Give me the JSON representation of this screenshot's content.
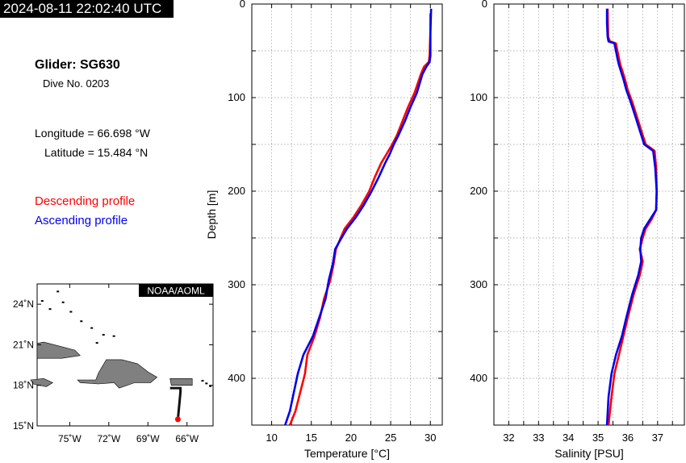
{
  "header": {
    "timestamp": "2024-08-11 22:02:40 UTC",
    "glider_label": "Glider: SG630",
    "dive_label": "Dive No. 0203",
    "longitude_label": "Longitude = 66.698 °W",
    "latitude_label": "Latitude = 15.484 °N"
  },
  "legend": {
    "descending": "Descending profile",
    "ascending": "Ascending profile"
  },
  "colors": {
    "descending": "#ff0000",
    "ascending": "#0000ee",
    "land": "#808080",
    "track": "#111111"
  },
  "map": {
    "label": "NOAA/AOML",
    "lat_ticks": [
      {
        "v": 24,
        "label": "24˚N"
      },
      {
        "v": 21,
        "label": "21˚N"
      },
      {
        "v": 18,
        "label": "18˚N"
      },
      {
        "v": 15,
        "label": "15˚N"
      }
    ],
    "lon_ticks": [
      {
        "v": -75,
        "label": "75˚W"
      },
      {
        "v": -72,
        "label": "72˚W"
      },
      {
        "v": -69,
        "label": "69˚W"
      },
      {
        "v": -66,
        "label": "66˚W"
      }
    ],
    "lon_range": [
      -77.5,
      -64.0
    ],
    "lat_range": [
      15.0,
      25.5
    ],
    "glider_position": [
      -66.698,
      15.484
    ]
  },
  "chart_data": [
    {
      "type": "line",
      "xlabel": "Temperature [°C]",
      "ylabel": "Depth [m]",
      "xlim": [
        7.5,
        31.5
      ],
      "ylim": [
        450,
        0
      ],
      "x_ticks": [
        10,
        15,
        20,
        25,
        30
      ],
      "y_ticks": [
        0,
        100,
        200,
        300,
        400
      ],
      "grid": true,
      "series": [
        {
          "name": "Descending profile",
          "color": "#ff0000",
          "points": [
            [
              30.0,
              10
            ],
            [
              30.0,
              30
            ],
            [
              29.9,
              55
            ],
            [
              29.8,
              62
            ],
            [
              29.2,
              67
            ],
            [
              28.8,
              75
            ],
            [
              28.0,
              95
            ],
            [
              27.2,
              110
            ],
            [
              26.5,
              125
            ],
            [
              25.8,
              140
            ],
            [
              25.2,
              150
            ],
            [
              24.5,
              160
            ],
            [
              23.8,
              170
            ],
            [
              23.0,
              185
            ],
            [
              22.3,
              200
            ],
            [
              21.3,
              215
            ],
            [
              20.3,
              228
            ],
            [
              19.2,
              240
            ],
            [
              18.7,
              250
            ],
            [
              18.1,
              262
            ],
            [
              17.8,
              278
            ],
            [
              17.4,
              295
            ],
            [
              16.6,
              315
            ],
            [
              16.1,
              335
            ],
            [
              15.4,
              355
            ],
            [
              14.5,
              375
            ],
            [
              14.2,
              395
            ],
            [
              13.6,
              415
            ],
            [
              13.0,
              435
            ],
            [
              12.3,
              450
            ]
          ]
        },
        {
          "name": "Ascending profile",
          "color": "#0000ee",
          "points": [
            [
              30.1,
              5
            ],
            [
              30.0,
              30
            ],
            [
              30.0,
              55
            ],
            [
              29.9,
              62
            ],
            [
              29.5,
              67
            ],
            [
              29.0,
              75
            ],
            [
              28.3,
              95
            ],
            [
              27.5,
              110
            ],
            [
              26.8,
              125
            ],
            [
              26.0,
              140
            ],
            [
              25.4,
              150
            ],
            [
              24.9,
              160
            ],
            [
              24.3,
              170
            ],
            [
              23.5,
              185
            ],
            [
              22.6,
              200
            ],
            [
              21.6,
              215
            ],
            [
              20.6,
              228
            ],
            [
              19.5,
              240
            ],
            [
              18.8,
              250
            ],
            [
              18.0,
              262
            ],
            [
              17.7,
              278
            ],
            [
              17.2,
              295
            ],
            [
              16.8,
              315
            ],
            [
              16.0,
              335
            ],
            [
              15.2,
              355
            ],
            [
              14.0,
              375
            ],
            [
              13.3,
              395
            ],
            [
              12.8,
              415
            ],
            [
              12.3,
              435
            ],
            [
              11.7,
              450
            ]
          ]
        }
      ]
    },
    {
      "type": "line",
      "xlabel": "Salinity [PSU]",
      "ylabel": "",
      "xlim": [
        31.5,
        37.9
      ],
      "ylim": [
        450,
        0
      ],
      "x_ticks": [
        32,
        33,
        34,
        35,
        36,
        37
      ],
      "y_ticks": [
        0,
        100,
        200,
        300,
        400
      ],
      "grid": true,
      "series": [
        {
          "name": "Descending profile",
          "color": "#ff0000",
          "points": [
            [
              35.32,
              5
            ],
            [
              35.33,
              20
            ],
            [
              35.34,
              35
            ],
            [
              35.4,
              40
            ],
            [
              35.6,
              42
            ],
            [
              35.65,
              50
            ],
            [
              35.7,
              58
            ],
            [
              35.75,
              65
            ],
            [
              35.8,
              70
            ],
            [
              35.9,
              80
            ],
            [
              36.0,
              92
            ],
            [
              36.15,
              105
            ],
            [
              36.3,
              120
            ],
            [
              36.45,
              135
            ],
            [
              36.6,
              150
            ],
            [
              36.9,
              157
            ],
            [
              36.95,
              175
            ],
            [
              36.97,
              200
            ],
            [
              36.95,
              220
            ],
            [
              36.8,
              230
            ],
            [
              36.6,
              240
            ],
            [
              36.5,
              250
            ],
            [
              36.4,
              262
            ],
            [
              36.5,
              275
            ],
            [
              36.4,
              290
            ],
            [
              36.2,
              310
            ],
            [
              36.0,
              335
            ],
            [
              35.85,
              355
            ],
            [
              35.7,
              375
            ],
            [
              35.55,
              395
            ],
            [
              35.45,
              420
            ],
            [
              35.35,
              450
            ]
          ]
        },
        {
          "name": "Ascending profile",
          "color": "#0000ee",
          "points": [
            [
              35.3,
              5
            ],
            [
              35.3,
              20
            ],
            [
              35.32,
              35
            ],
            [
              35.35,
              40
            ],
            [
              35.55,
              42
            ],
            [
              35.6,
              50
            ],
            [
              35.65,
              58
            ],
            [
              35.7,
              65
            ],
            [
              35.75,
              70
            ],
            [
              35.85,
              80
            ],
            [
              35.95,
              92
            ],
            [
              36.1,
              105
            ],
            [
              36.25,
              120
            ],
            [
              36.4,
              135
            ],
            [
              36.55,
              150
            ],
            [
              36.85,
              157
            ],
            [
              36.92,
              175
            ],
            [
              36.97,
              200
            ],
            [
              36.95,
              220
            ],
            [
              36.75,
              230
            ],
            [
              36.55,
              240
            ],
            [
              36.45,
              250
            ],
            [
              36.42,
              262
            ],
            [
              36.45,
              275
            ],
            [
              36.35,
              290
            ],
            [
              36.15,
              310
            ],
            [
              35.95,
              335
            ],
            [
              35.8,
              355
            ],
            [
              35.6,
              375
            ],
            [
              35.45,
              395
            ],
            [
              35.35,
              420
            ],
            [
              35.3,
              450
            ]
          ]
        }
      ]
    }
  ]
}
